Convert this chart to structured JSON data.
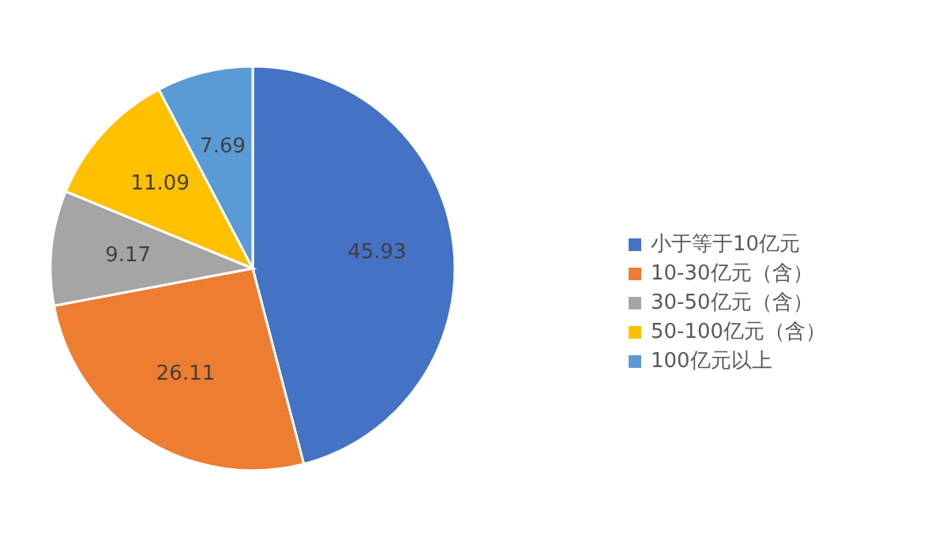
{
  "chart_data": {
    "type": "pie",
    "categories": [
      "小于等于10亿元",
      "10-30亿元（含）",
      "30-50亿元（含）",
      "50-100亿元（含）",
      "100亿元以上"
    ],
    "values": [
      45.93,
      26.11,
      9.17,
      11.09,
      7.69
    ],
    "colors": [
      "#4472c4",
      "#ed7d31",
      "#a5a5a5",
      "#ffc000",
      "#5b9bd5"
    ],
    "data_labels": true,
    "legend": "right"
  }
}
